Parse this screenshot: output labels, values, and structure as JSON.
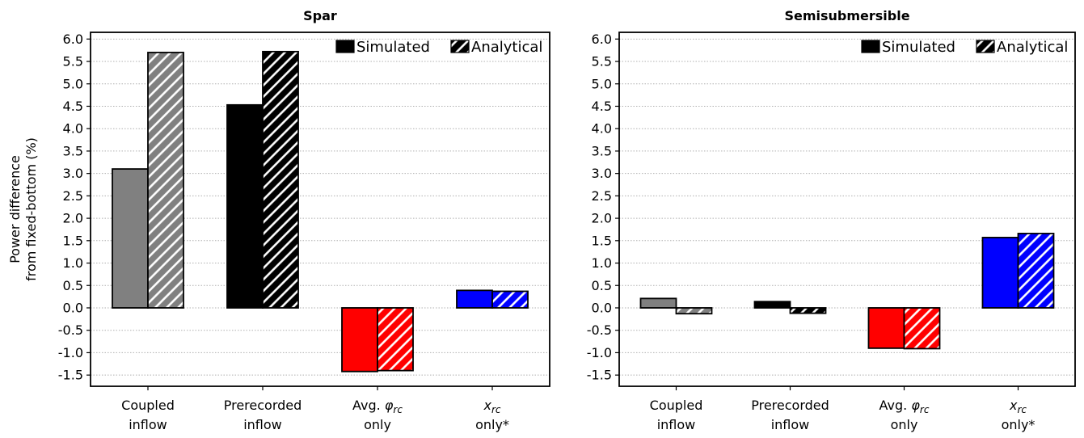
{
  "chart_data": [
    {
      "type": "bar",
      "title": "Spar",
      "ylabel": [
        "Power difference",
        "from fixed-bottom (%)"
      ],
      "categories": [
        {
          "lines": [
            "Coupled",
            "inflow"
          ]
        },
        {
          "lines": [
            "Prerecorded",
            "inflow"
          ]
        },
        {
          "lines": [
            "Avg. φ_rc",
            "only"
          ]
        },
        {
          "lines": [
            "x_rc",
            "only*"
          ]
        }
      ],
      "category_colors": [
        "#808080",
        "#000000",
        "#ff0000",
        "#0000ff"
      ],
      "series": [
        {
          "name": "Simulated",
          "style": "solid",
          "values": [
            3.1,
            4.53,
            -1.42,
            0.39
          ]
        },
        {
          "name": "Analytical",
          "style": "hatched",
          "values": [
            5.7,
            5.72,
            -1.4,
            0.37
          ]
        }
      ],
      "ylim": [
        -1.75,
        6.15
      ],
      "yticks": [
        "6.0",
        "5.5",
        "5.0",
        "4.5",
        "4.0",
        "3.5",
        "3.0",
        "2.5",
        "2.0",
        "1.5",
        "1.0",
        "0.5",
        "0.0",
        "-0.5",
        "-1.0",
        "-1.5"
      ],
      "grid": true,
      "legend_position": "top-right"
    },
    {
      "type": "bar",
      "title": "Semisubmersible",
      "categories": [
        {
          "lines": [
            "Coupled",
            "inflow"
          ]
        },
        {
          "lines": [
            "Prerecorded",
            "inflow"
          ]
        },
        {
          "lines": [
            "Avg. φ_rc",
            "only"
          ]
        },
        {
          "lines": [
            "x_rc",
            "only*"
          ]
        }
      ],
      "category_colors": [
        "#808080",
        "#000000",
        "#ff0000",
        "#0000ff"
      ],
      "series": [
        {
          "name": "Simulated",
          "style": "solid",
          "values": [
            0.21,
            0.14,
            -0.9,
            1.57
          ]
        },
        {
          "name": "Analytical",
          "style": "hatched",
          "values": [
            -0.13,
            -0.12,
            -0.91,
            1.66
          ]
        }
      ],
      "ylim": [
        -1.75,
        6.15
      ],
      "yticks": [
        "6.0",
        "5.5",
        "5.0",
        "4.5",
        "4.0",
        "3.5",
        "3.0",
        "2.5",
        "2.0",
        "1.5",
        "1.0",
        "0.5",
        "0.0",
        "-0.5",
        "-1.0",
        "-1.5"
      ],
      "grid": true,
      "legend_position": "top-right"
    }
  ]
}
